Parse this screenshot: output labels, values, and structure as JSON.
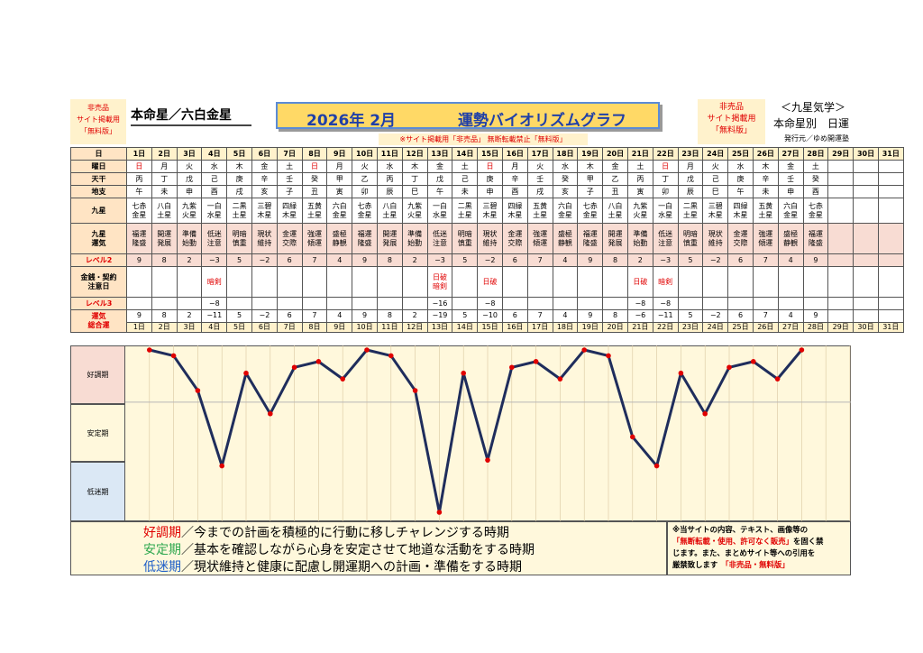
{
  "header": {
    "nfs_left": [
      "非売品",
      "サイト掲載用",
      "「無料版」"
    ],
    "honmei": "本命星／六白金星",
    "year_month": "2026年 2月",
    "title": "運勢バイオリズムグラフ",
    "notice": "※サイト掲載用「非売品」 無断転載禁止「無料版」",
    "nfs_right": [
      "非売品",
      "サイト掲載用",
      "「無料版」"
    ],
    "brand": "＜九星気学＞",
    "sub": "本命星別　日運",
    "publisher": "発行元／ゆめ開運塾"
  },
  "row_labels": {
    "day": "日",
    "weekday": "曜日",
    "tenkan": "天干",
    "chishi": "地支",
    "kyusei": "九星",
    "kyusei_unki": [
      "九星",
      "運気"
    ],
    "level2": "レベル2",
    "kinsen": [
      "金銭・契約",
      "注意日"
    ],
    "level3": "レベル3",
    "total": [
      "運気",
      "総合運"
    ]
  },
  "days": [
    "1日",
    "2日",
    "3日",
    "4日",
    "5日",
    "6日",
    "7日",
    "8日",
    "9日",
    "10日",
    "11日",
    "12日",
    "13日",
    "14日",
    "15日",
    "16日",
    "17日",
    "18日",
    "19日",
    "20日",
    "21日",
    "22日",
    "23日",
    "24日",
    "25日",
    "26日",
    "27日",
    "28日",
    "29日",
    "30日",
    "31日"
  ],
  "weekdays": [
    "日",
    "月",
    "火",
    "水",
    "木",
    "金",
    "土",
    "日",
    "月",
    "火",
    "水",
    "木",
    "金",
    "土",
    "日",
    "月",
    "火",
    "水",
    "木",
    "金",
    "土",
    "日",
    "月",
    "火",
    "水",
    "木",
    "金",
    "土",
    "",
    "",
    ""
  ],
  "tenkan": [
    "丙",
    "丁",
    "戊",
    "己",
    "庚",
    "辛",
    "壬",
    "癸",
    "甲",
    "乙",
    "丙",
    "丁",
    "戊",
    "己",
    "庚",
    "辛",
    "壬",
    "癸",
    "甲",
    "乙",
    "丙",
    "丁",
    "戊",
    "己",
    "庚",
    "辛",
    "壬",
    "癸",
    "",
    "",
    ""
  ],
  "chishi": [
    "午",
    "未",
    "申",
    "酉",
    "戌",
    "亥",
    "子",
    "丑",
    "寅",
    "卯",
    "辰",
    "巳",
    "午",
    "未",
    "申",
    "酉",
    "戌",
    "亥",
    "子",
    "丑",
    "寅",
    "卯",
    "辰",
    "巳",
    "午",
    "未",
    "申",
    "酉",
    "",
    "",
    ""
  ],
  "kyusei": [
    [
      "七赤",
      "金星"
    ],
    [
      "八白",
      "土星"
    ],
    [
      "九紫",
      "火星"
    ],
    [
      "一白",
      "水星"
    ],
    [
      "二黒",
      "土星"
    ],
    [
      "三碧",
      "木星"
    ],
    [
      "四緑",
      "木星"
    ],
    [
      "五黄",
      "土星"
    ],
    [
      "六白",
      "金星"
    ],
    [
      "七赤",
      "金星"
    ],
    [
      "八白",
      "土星"
    ],
    [
      "九紫",
      "火星"
    ],
    [
      "一白",
      "水星"
    ],
    [
      "二黒",
      "土星"
    ],
    [
      "三碧",
      "木星"
    ],
    [
      "四緑",
      "木星"
    ],
    [
      "五黄",
      "土星"
    ],
    [
      "六白",
      "金星"
    ],
    [
      "七赤",
      "金星"
    ],
    [
      "八白",
      "土星"
    ],
    [
      "九紫",
      "火星"
    ],
    [
      "一白",
      "水星"
    ],
    [
      "二黒",
      "土星"
    ],
    [
      "三碧",
      "木星"
    ],
    [
      "四緑",
      "木星"
    ],
    [
      "五黄",
      "土星"
    ],
    [
      "六白",
      "金星"
    ],
    [
      "七赤",
      "金星"
    ],
    [
      "",
      ""
    ],
    [
      "",
      ""
    ],
    [
      "",
      ""
    ]
  ],
  "kyusei_unki": [
    [
      "福運",
      "隆盛"
    ],
    [
      "開運",
      "発展"
    ],
    [
      "準備",
      "始動"
    ],
    [
      "低迷",
      "注意"
    ],
    [
      "明暗",
      "慎重"
    ],
    [
      "現状",
      "維持"
    ],
    [
      "金運",
      "交際"
    ],
    [
      "強運",
      "傾運"
    ],
    [
      "盛極",
      "静観"
    ],
    [
      "福運",
      "隆盛"
    ],
    [
      "開運",
      "発展"
    ],
    [
      "準備",
      "始動"
    ],
    [
      "低迷",
      "注意"
    ],
    [
      "明暗",
      "慎重"
    ],
    [
      "現状",
      "維持"
    ],
    [
      "金運",
      "交際"
    ],
    [
      "強運",
      "傾運"
    ],
    [
      "盛極",
      "静観"
    ],
    [
      "福運",
      "隆盛"
    ],
    [
      "開運",
      "発展"
    ],
    [
      "準備",
      "始動"
    ],
    [
      "低迷",
      "注意"
    ],
    [
      "明暗",
      "慎重"
    ],
    [
      "現状",
      "維持"
    ],
    [
      "金運",
      "交際"
    ],
    [
      "強運",
      "傾運"
    ],
    [
      "盛極",
      "静観"
    ],
    [
      "福運",
      "隆盛"
    ],
    [
      "",
      ""
    ],
    [
      "",
      ""
    ],
    [
      "",
      ""
    ]
  ],
  "level2": [
    "9",
    "8",
    "2",
    "−3",
    "5",
    "−2",
    "6",
    "7",
    "4",
    "9",
    "8",
    "2",
    "−3",
    "5",
    "−2",
    "6",
    "7",
    "4",
    "9",
    "8",
    "2",
    "−3",
    "5",
    "−2",
    "6",
    "7",
    "4",
    "9",
    "",
    "",
    ""
  ],
  "kinsen": [
    [
      "",
      ""
    ],
    [
      "",
      ""
    ],
    [
      "",
      ""
    ],
    [
      "",
      "暗剣"
    ],
    [
      "",
      ""
    ],
    [
      "",
      ""
    ],
    [
      "",
      ""
    ],
    [
      "",
      ""
    ],
    [
      "",
      ""
    ],
    [
      "",
      ""
    ],
    [
      "",
      ""
    ],
    [
      "",
      ""
    ],
    [
      "日破",
      "暗剣"
    ],
    [
      "",
      ""
    ],
    [
      "日破",
      ""
    ],
    [
      "",
      ""
    ],
    [
      "",
      ""
    ],
    [
      "",
      ""
    ],
    [
      "",
      ""
    ],
    [
      "",
      ""
    ],
    [
      "日破",
      ""
    ],
    [
      "暗剣",
      ""
    ],
    [
      "",
      ""
    ],
    [
      "",
      ""
    ],
    [
      "",
      ""
    ],
    [
      "",
      ""
    ],
    [
      "",
      ""
    ],
    [
      "",
      ""
    ],
    [
      "",
      ""
    ],
    [
      "",
      ""
    ],
    [
      "",
      ""
    ]
  ],
  "level3": [
    "",
    "",
    "",
    "−8",
    "",
    "",
    "",
    "",
    "",
    "",
    "",
    "",
    "−16",
    "",
    "−8",
    "",
    "",
    "",
    "",
    "",
    "−8",
    "−8",
    "",
    "",
    "",
    "",
    "",
    "",
    "",
    "",
    ""
  ],
  "total": [
    "9",
    "8",
    "2",
    "−11",
    "5",
    "−2",
    "6",
    "7",
    "4",
    "9",
    "8",
    "2",
    "−19",
    "5",
    "−10",
    "6",
    "7",
    "4",
    "9",
    "8",
    "−6",
    "−11",
    "5",
    "−2",
    "6",
    "7",
    "4",
    "9",
    "",
    "",
    ""
  ],
  "zones": {
    "good": "好調期",
    "stable": "安定期",
    "low": "低迷期"
  },
  "chart_data": {
    "type": "line",
    "x": [
      1,
      2,
      3,
      4,
      5,
      6,
      7,
      8,
      9,
      10,
      11,
      12,
      13,
      14,
      15,
      16,
      17,
      18,
      19,
      20,
      21,
      22,
      23,
      24,
      25,
      26,
      27,
      28
    ],
    "series": [
      {
        "values": [
          9,
          8,
          2,
          -11,
          5,
          -2,
          6,
          7,
          4,
          9,
          8,
          2,
          -19,
          5,
          -10,
          6,
          7,
          4,
          9,
          8,
          -6,
          -11,
          5,
          -2,
          6,
          7,
          4,
          9
        ]
      }
    ],
    "ylim": [
      -19,
      9
    ],
    "line_color": "#1f2d5c",
    "marker_color": "#e00000"
  },
  "legend": {
    "good_label": "好調期",
    "good_text": "／今までの計画を積極的に行動に移しチャレンジする時期",
    "stable_label": "安定期",
    "stable_text": "／基本を確認しながら心身を安定させて地道な活動をする時期",
    "low_label": "低迷期",
    "low_text": "／現状維持と健康に配慮し開運期への計画・準備をする時期",
    "good_color": "#e00000",
    "stable_color": "#2fa84f",
    "low_color": "#1f5fc8"
  },
  "footnote": {
    "line1": "※当サイトの内容、テキスト、画像等の",
    "line2_red": "「無断転載・使用、許可なく販売」",
    "line2_black": "を固く禁",
    "line3": "じます。また、まとめサイト等への引用を",
    "line4_black": "厳禁致します",
    "line4_red": "「非売品・無料版」"
  }
}
